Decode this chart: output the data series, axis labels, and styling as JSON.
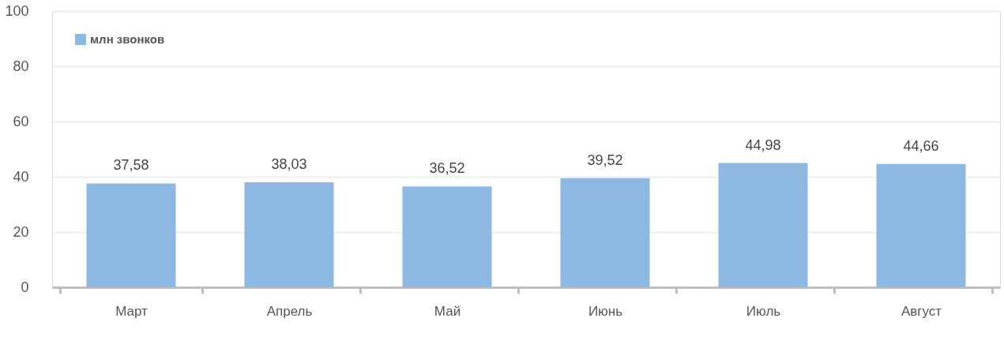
{
  "chart_data": {
    "type": "bar",
    "categories": [
      "Март",
      "Апрель",
      "Май",
      "Июнь",
      "Июль",
      "Август"
    ],
    "series": [
      {
        "name": "млн звонков",
        "color": "#8db8e2",
        "values": [
          37.58,
          38.03,
          36.52,
          39.52,
          44.98,
          44.66
        ]
      }
    ],
    "value_labels": [
      "37,58",
      "38,03",
      "36,52",
      "39,52",
      "44,98",
      "44,66"
    ],
    "ylim": [
      0,
      100
    ],
    "yticks": [
      0,
      20,
      40,
      60,
      80,
      100
    ],
    "grid": "y",
    "legend": "top left"
  }
}
